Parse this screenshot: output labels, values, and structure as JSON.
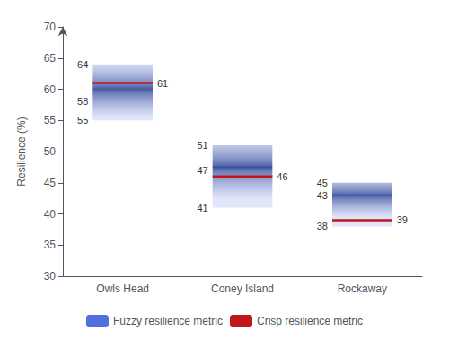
{
  "chart_data": {
    "type": "range_bar",
    "categories": [
      "Owls Head",
      "Coney Island",
      "Rockaway"
    ],
    "ylabel": "Resilience (%)",
    "ylim": [
      30,
      70
    ],
    "yticks": [
      30,
      35,
      40,
      45,
      50,
      55,
      60,
      65,
      70
    ],
    "grid": false,
    "legend": "bottom",
    "series": [
      {
        "name": "Fuzzy resilience metric",
        "type": "range",
        "low": [
          55,
          41,
          38
        ],
        "high": [
          64,
          51,
          45
        ],
        "core_low": [
          58,
          46,
          42
        ],
        "core_high": [
          62,
          49,
          44
        ],
        "labels": [
          [
            64,
            58,
            55
          ],
          [
            51,
            47,
            41
          ],
          [
            45,
            43,
            38
          ]
        ]
      },
      {
        "name": "Crisp resilience metric",
        "type": "level",
        "color": "#c0161a",
        "values": [
          61,
          46,
          39
        ],
        "data_labels": true
      }
    ]
  }
}
